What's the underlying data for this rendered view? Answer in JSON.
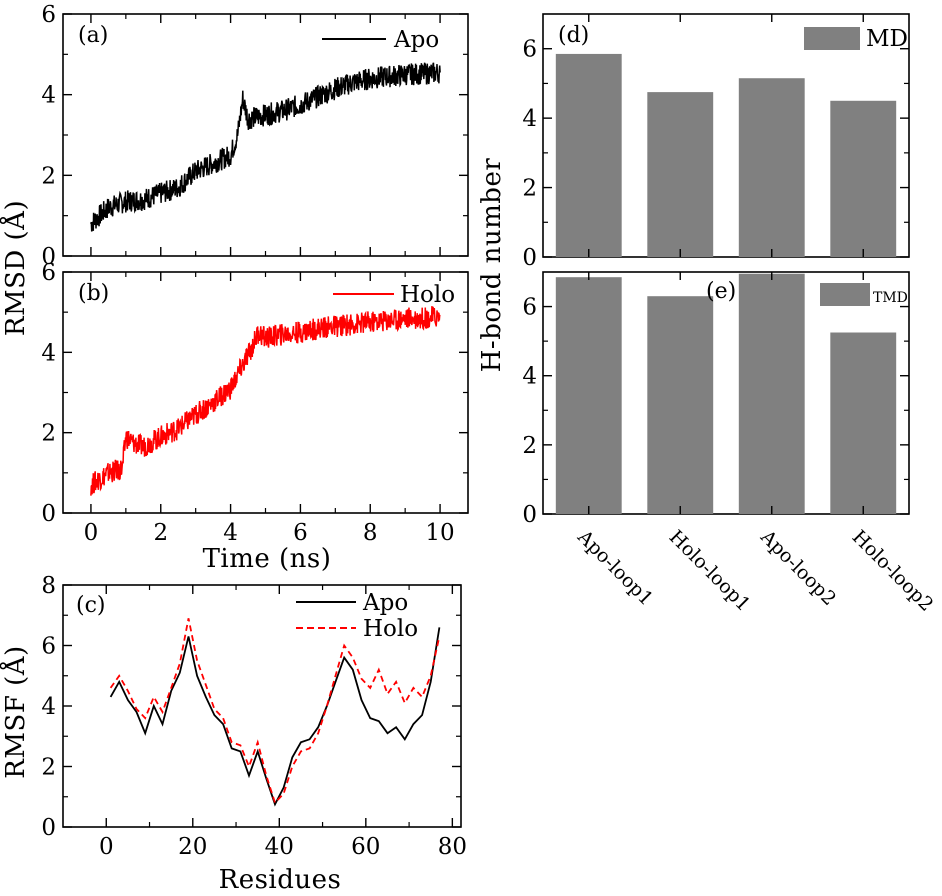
{
  "chart_data": [
    {
      "panel": "(a)",
      "type": "line",
      "title": "",
      "xlabel": "",
      "ylabel": "",
      "xlim": [
        -0.8,
        10.8
      ],
      "ylim": [
        0,
        6
      ],
      "yticks": [
        "0",
        "2",
        "4",
        "6"
      ],
      "legend": "top-right",
      "series": [
        {
          "name": "Apo",
          "color": "#000000",
          "x": [
            0,
            0.5,
            1,
            1.5,
            2,
            2.5,
            3,
            3.5,
            4,
            4.2,
            4.35,
            4.5,
            5,
            5.5,
            6,
            6.5,
            7,
            7.5,
            8,
            8.5,
            9,
            9.5,
            10
          ],
          "y": [
            0.8,
            1.2,
            1.35,
            1.4,
            1.55,
            1.7,
            2.1,
            2.3,
            2.5,
            3.0,
            3.9,
            3.4,
            3.5,
            3.6,
            3.75,
            3.95,
            4.15,
            4.3,
            4.4,
            4.45,
            4.5,
            4.52,
            4.55
          ]
        }
      ]
    },
    {
      "panel": "(b)",
      "type": "line",
      "xlabel": "Time (ns)",
      "ylabel": "RMSD (Å)",
      "xlim": [
        -0.8,
        10.8
      ],
      "ylim": [
        0,
        6
      ],
      "xticks": [
        "0",
        "2",
        "4",
        "6",
        "8",
        "10"
      ],
      "yticks": [
        "0",
        "2",
        "4",
        "6"
      ],
      "legend": "top-right",
      "series": [
        {
          "name": "Holo",
          "color": "#ff0000",
          "x": [
            0,
            0.5,
            0.9,
            1.0,
            1.2,
            1.5,
            2,
            2.5,
            3,
            3.5,
            4,
            4.3,
            4.6,
            4.8,
            5,
            5.5,
            6,
            6.5,
            7,
            7.5,
            8,
            8.5,
            9,
            9.5,
            10
          ],
          "y": [
            0.7,
            1.0,
            1.1,
            1.9,
            1.75,
            1.65,
            1.9,
            2.1,
            2.45,
            2.75,
            3.1,
            3.6,
            4.1,
            4.5,
            4.35,
            4.45,
            4.5,
            4.6,
            4.65,
            4.7,
            4.75,
            4.8,
            4.85,
            4.85,
            4.9
          ]
        }
      ]
    },
    {
      "panel": "(c)",
      "type": "line",
      "xlabel": "Residues",
      "ylabel": "RMSF (Å)",
      "xlim": [
        -10,
        82
      ],
      "ylim": [
        0,
        8
      ],
      "xticks": [
        "0",
        "20",
        "40",
        "60",
        "80"
      ],
      "yticks": [
        "0",
        "2",
        "4",
        "6",
        "8"
      ],
      "legend": "top-right",
      "series": [
        {
          "name": "Apo",
          "color": "#000000",
          "dash": "solid",
          "x": [
            1,
            3,
            5,
            7,
            9,
            11,
            13,
            15,
            17,
            19,
            21,
            23,
            25,
            27,
            29,
            31,
            33,
            35,
            37,
            39,
            41,
            43,
            45,
            47,
            49,
            51,
            53,
            55,
            57,
            59,
            61,
            63,
            65,
            67,
            69,
            71,
            73,
            75,
            77
          ],
          "y": [
            4.3,
            4.8,
            4.2,
            3.8,
            3.1,
            4.0,
            3.4,
            4.5,
            5.1,
            6.3,
            5.0,
            4.3,
            3.7,
            3.4,
            2.6,
            2.5,
            1.7,
            2.5,
            1.6,
            0.75,
            1.3,
            2.3,
            2.8,
            2.9,
            3.3,
            4.0,
            4.8,
            5.6,
            5.2,
            4.2,
            3.6,
            3.5,
            3.1,
            3.3,
            2.9,
            3.4,
            3.7,
            4.8,
            6.6
          ]
        },
        {
          "name": "Holo",
          "color": "#ff0000",
          "dash": "dashed",
          "x": [
            1,
            3,
            5,
            7,
            9,
            11,
            13,
            15,
            17,
            19,
            21,
            23,
            25,
            27,
            29,
            31,
            33,
            35,
            37,
            39,
            41,
            43,
            45,
            47,
            49,
            51,
            53,
            55,
            57,
            59,
            61,
            63,
            65,
            67,
            69,
            71,
            73,
            75,
            77
          ],
          "y": [
            4.6,
            5.0,
            4.5,
            3.9,
            3.6,
            4.3,
            3.8,
            4.6,
            5.4,
            6.9,
            5.5,
            4.7,
            3.9,
            3.6,
            2.8,
            2.7,
            2.0,
            2.8,
            1.7,
            0.8,
            1.1,
            2.0,
            2.5,
            2.6,
            3.1,
            4.0,
            5.0,
            6.0,
            5.6,
            4.9,
            4.6,
            5.2,
            4.4,
            4.8,
            4.1,
            4.6,
            4.3,
            5.0,
            6.3
          ]
        }
      ]
    },
    {
      "panel": "(d)",
      "type": "bar",
      "ylabel": "H-bond number",
      "ylim": [
        0,
        7
      ],
      "yticks": [
        "0",
        "2",
        "4",
        "6"
      ],
      "categories": [
        "Apo-loop1",
        "Holo-loop1",
        "Apo-loop2",
        "Holo-loop2"
      ],
      "series": [
        {
          "name": "MD",
          "color": "#808080",
          "values": [
            5.85,
            4.75,
            5.15,
            4.5
          ]
        }
      ],
      "legend": "top-right"
    },
    {
      "panel": "(e)",
      "type": "bar",
      "ylabel": "H-bond number",
      "ylim": [
        0,
        7
      ],
      "yticks": [
        "0",
        "2",
        "4",
        "6"
      ],
      "categories": [
        "Apo-loop1",
        "Holo-loop1",
        "Apo-loop2",
        "Holo-loop2"
      ],
      "series": [
        {
          "name": "TMD",
          "color": "#808080",
          "values": [
            6.85,
            6.3,
            6.95,
            5.25
          ]
        }
      ],
      "legend": "top-right"
    }
  ]
}
